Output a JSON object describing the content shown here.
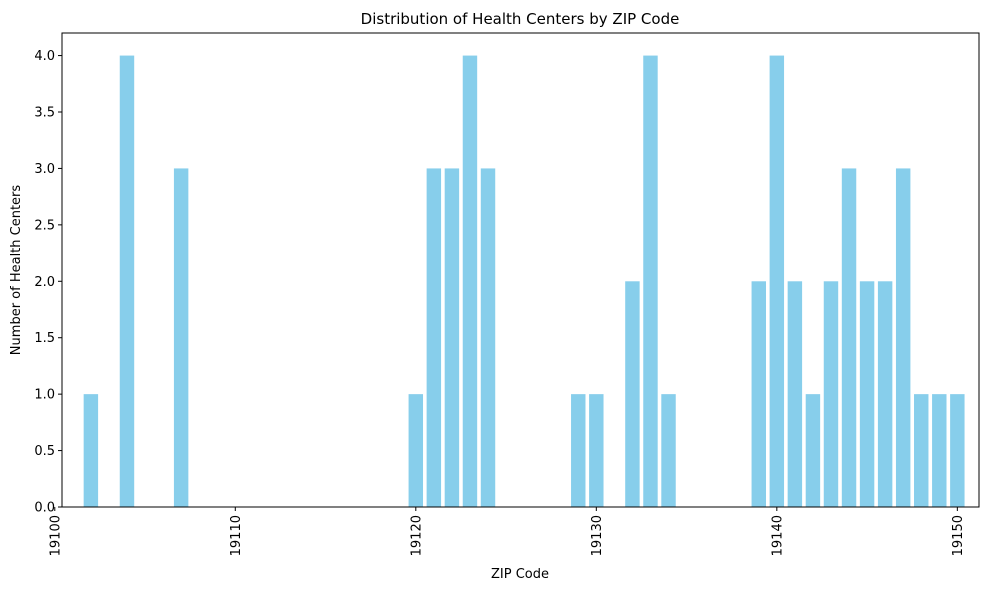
{
  "chart_data": {
    "type": "bar",
    "title": "Distribution of Health Centers by ZIP Code",
    "xlabel": "ZIP Code",
    "ylabel": "Number of Health Centers",
    "x": [
      19102,
      19104,
      19107,
      19120,
      19121,
      19122,
      19123,
      19124,
      19129,
      19130,
      19132,
      19133,
      19134,
      19139,
      19140,
      19141,
      19142,
      19143,
      19144,
      19145,
      19146,
      19147,
      19148,
      19149,
      19150
    ],
    "values": [
      1,
      4,
      3,
      1,
      3,
      3,
      4,
      3,
      1,
      1,
      2,
      4,
      1,
      2,
      4,
      2,
      1,
      2,
      3,
      2,
      2,
      3,
      1,
      1,
      1
    ],
    "xlim": [
      19100.4,
      19151.2
    ],
    "ylim": [
      0,
      4.2
    ],
    "xticks": [
      19100,
      19110,
      19120,
      19130,
      19140,
      19150
    ],
    "yticks": [
      "0.0",
      "0.5",
      "1.0",
      "1.5",
      "2.0",
      "2.5",
      "3.0",
      "3.5",
      "4.0"
    ],
    "bar_color": "#87ceeb",
    "grid": false,
    "legend": false
  }
}
